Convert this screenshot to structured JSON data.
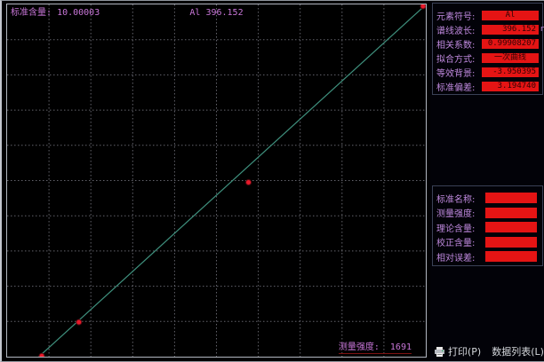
{
  "chart": {
    "std_label": "标准含量:",
    "std_value": "10.00003",
    "title": "Al 396.152",
    "intensity_label": "测量强度:  ",
    "intensity_value": "1691",
    "colors": {
      "fit_line": "#3f917e",
      "point_fill": "#e81a2a",
      "point_stroke": "#5a0a12",
      "grid": "#63636b",
      "label_text": "#c876d8"
    }
  },
  "chart_data": {
    "type": "scatter",
    "title": "Al 396.152",
    "xlabel": "测量强度",
    "ylabel": "标准含量",
    "xlim": [
      0,
      1691
    ],
    "ylim": [
      0,
      10.00003
    ],
    "grid": "10x10 dashed",
    "legend": "none",
    "fit_type": "一次曲线",
    "fit_line": [
      [
        105,
        -0.15
      ],
      [
        1680,
        9.92
      ]
    ],
    "points": [
      [
        140,
        0.02
      ],
      [
        290,
        0.98
      ],
      [
        975,
        4.95
      ],
      [
        1680,
        9.95
      ]
    ]
  },
  "panel": {
    "info_rows": [
      {
        "label": "元素符号:",
        "value": "Al",
        "suffix": ""
      },
      {
        "label": "谱线波长:",
        "value": "396.152",
        "suffix": "nm"
      },
      {
        "label": "相关系数:",
        "value": "0.99908207",
        "suffix": ""
      },
      {
        "label": "拟合方式:",
        "value": "一次曲线",
        "suffix": ""
      },
      {
        "label": "等效背景:",
        "value": "-3.950395",
        "suffix": ""
      },
      {
        "label": "标准偏差:",
        "value": "3.194740",
        "suffix": ""
      }
    ],
    "sample_rows": [
      {
        "label": "标准名称:",
        "value": ""
      },
      {
        "label": "测量强度:",
        "value": ""
      },
      {
        "label": "理论含量:",
        "value": ""
      },
      {
        "label": "校正含量:",
        "value": ""
      },
      {
        "label": "相对误差:",
        "value": ""
      }
    ],
    "buttons": [
      {
        "label": "打印(P)"
      },
      {
        "label": "数据列表(L)"
      }
    ]
  }
}
